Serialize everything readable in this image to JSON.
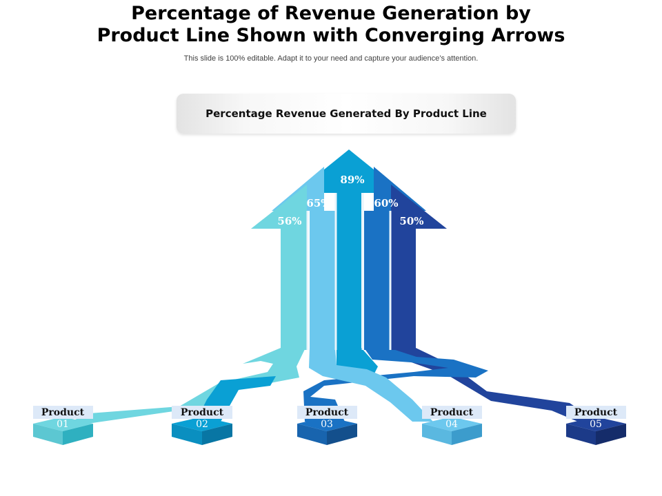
{
  "title_line1": "Percentage of Revenue Generation by",
  "title_line2": "Product Line Shown with Converging Arrows",
  "subtitle": "This slide is 100% editable. Adapt it to your need and capture your audience’s attention.",
  "header_label": "Percentage Revenue Generated By Product Line",
  "colors": {
    "p1": "#6fd6e0",
    "p2": "#6cc8ee",
    "p3": "#0aa0d4",
    "p4": "#1a72c4",
    "p5": "#21449c",
    "label_band": "#dde9f8"
  },
  "segments": [
    {
      "percent": "56%"
    },
    {
      "percent": "65%"
    },
    {
      "percent": "89%"
    },
    {
      "percent": "60%"
    },
    {
      "percent": "50%"
    }
  ],
  "products": [
    {
      "name": "Product",
      "number": "01"
    },
    {
      "name": "Product",
      "number": "02"
    },
    {
      "name": "Product",
      "number": "03"
    },
    {
      "name": "Product",
      "number": "04"
    },
    {
      "name": "Product",
      "number": "05"
    }
  ]
}
